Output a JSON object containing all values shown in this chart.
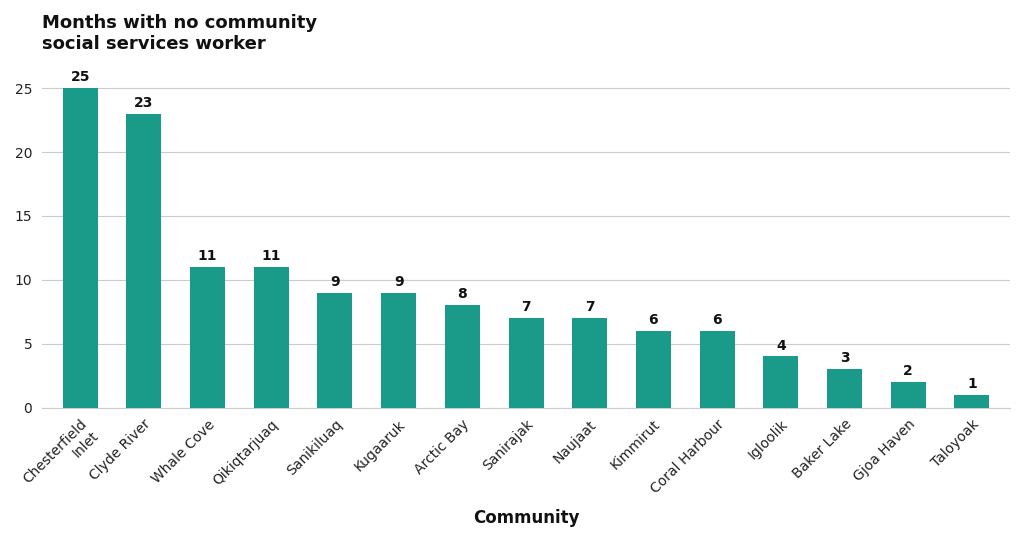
{
  "categories": [
    "Chesterfield\nInlet",
    "Clyde River",
    "Whale Cove",
    "Qikiqtarjuaq",
    "Sanikiluaq",
    "Kugaaruk",
    "Arctic Bay",
    "Sanirajak",
    "Naujaat",
    "Kimmirut",
    "Coral Harbour",
    "Igloolik",
    "Baker Lake",
    "Gjoa Haven",
    "Taloyoak"
  ],
  "values": [
    25,
    23,
    11,
    11,
    9,
    9,
    8,
    7,
    7,
    6,
    6,
    4,
    3,
    2,
    1
  ],
  "bar_color": "#1a9b8a",
  "title": "Months with no community\nsocial services worker",
  "xlabel": "Community",
  "ylabel": "",
  "ylim": [
    0,
    27
  ],
  "yticks": [
    0,
    5,
    10,
    15,
    20,
    25
  ],
  "title_fontsize": 13,
  "xlabel_fontsize": 12,
  "tick_fontsize": 10,
  "value_fontsize": 10,
  "background_color": "#ffffff",
  "grid_color": "#cccccc"
}
